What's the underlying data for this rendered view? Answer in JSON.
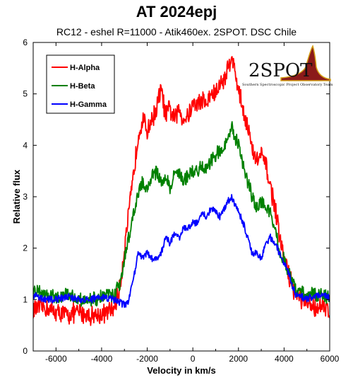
{
  "title": "AT 2024epj",
  "subtitle": "RC12 - eshel R=11000 - Atik460ex. 2SPOT. DSC Chile",
  "logo": {
    "text": "2SPOT",
    "tagline": "Southern Spectroscopic Project Observatory Team",
    "colors": {
      "text": "#111111",
      "curve": "#d4a017",
      "fill": "#8b1a1a"
    }
  },
  "chart_data": {
    "type": "line",
    "title": "AT 2024epj",
    "subtitle": "RC12 - eshel R=11000 - Atik460ex. 2SPOT. DSC Chile",
    "xlabel": "Velocity in km/s",
    "ylabel": "Relative flux",
    "xlim": [
      -7000,
      6000
    ],
    "ylim": [
      0,
      6
    ],
    "xticks": [
      -6000,
      -4000,
      -2000,
      0,
      2000,
      4000,
      6000
    ],
    "yticks": [
      0,
      1,
      2,
      3,
      4,
      5,
      6
    ],
    "legend_position": "top-left",
    "grid": false,
    "series": [
      {
        "name": "H-Alpha",
        "color": "#ff0000",
        "x": [
          -7000,
          -6500,
          -6000,
          -5500,
          -5000,
          -4500,
          -4000,
          -3500,
          -3200,
          -3000,
          -2800,
          -2600,
          -2400,
          -2200,
          -2000,
          -1800,
          -1600,
          -1400,
          -1200,
          -1000,
          -800,
          -600,
          -400,
          -200,
          0,
          200,
          400,
          600,
          800,
          1000,
          1200,
          1400,
          1600,
          1700,
          1800,
          2000,
          2200,
          2400,
          2600,
          2800,
          3000,
          3200,
          3400,
          3600,
          3800,
          4000,
          4200,
          4500,
          5000,
          5500,
          6000
        ],
        "y": [
          0.8,
          0.85,
          0.75,
          0.7,
          0.75,
          0.7,
          0.7,
          0.8,
          1.2,
          2.0,
          2.7,
          3.4,
          4.2,
          4.5,
          4.3,
          4.5,
          4.7,
          5.1,
          4.6,
          4.7,
          4.5,
          4.7,
          4.5,
          4.6,
          4.8,
          4.8,
          4.9,
          4.8,
          5.0,
          5.0,
          5.2,
          5.3,
          5.6,
          5.8,
          5.5,
          5.1,
          4.7,
          4.4,
          3.9,
          3.7,
          3.8,
          3.6,
          3.2,
          2.8,
          2.2,
          1.8,
          1.5,
          1.1,
          0.9,
          0.85,
          0.8
        ]
      },
      {
        "name": "H-Beta",
        "color": "#008000",
        "x": [
          -7000,
          -6500,
          -6000,
          -5500,
          -5000,
          -4500,
          -4000,
          -3500,
          -3200,
          -3000,
          -2800,
          -2600,
          -2400,
          -2200,
          -2000,
          -1800,
          -1600,
          -1400,
          -1200,
          -1000,
          -800,
          -600,
          -400,
          -200,
          0,
          200,
          400,
          600,
          800,
          1000,
          1200,
          1400,
          1600,
          1700,
          1800,
          2000,
          2200,
          2400,
          2600,
          2800,
          3000,
          3200,
          3400,
          3600,
          3800,
          4000,
          4200,
          4500,
          5000,
          5500,
          6000
        ],
        "y": [
          1.2,
          1.15,
          1.0,
          1.1,
          1.0,
          1.0,
          1.05,
          1.1,
          1.3,
          1.8,
          2.2,
          2.7,
          3.0,
          3.3,
          3.1,
          3.4,
          3.5,
          3.3,
          3.4,
          3.2,
          3.4,
          3.5,
          3.3,
          3.4,
          3.5,
          3.5,
          3.6,
          3.5,
          3.7,
          3.8,
          3.9,
          4.0,
          4.2,
          4.4,
          4.2,
          4.0,
          3.6,
          3.3,
          3.0,
          2.8,
          2.9,
          2.8,
          2.7,
          2.4,
          1.9,
          1.8,
          1.5,
          1.2,
          1.1,
          1.1,
          1.05
        ]
      },
      {
        "name": "H-Gamma",
        "color": "#0000ff",
        "x": [
          -7000,
          -6500,
          -6000,
          -5500,
          -5000,
          -4500,
          -4000,
          -3500,
          -3200,
          -3000,
          -2800,
          -2600,
          -2400,
          -2200,
          -2000,
          -1800,
          -1600,
          -1400,
          -1200,
          -1000,
          -800,
          -600,
          -400,
          -200,
          0,
          200,
          400,
          600,
          800,
          1000,
          1200,
          1400,
          1600,
          1700,
          1800,
          2000,
          2200,
          2400,
          2600,
          2800,
          3000,
          3200,
          3400,
          3600,
          3800,
          4000,
          4200,
          4500,
          5000,
          5500,
          6000
        ],
        "y": [
          1.1,
          1.0,
          1.0,
          1.05,
          1.0,
          1.0,
          1.05,
          1.0,
          0.95,
          0.9,
          1.0,
          1.4,
          1.9,
          1.8,
          1.9,
          1.8,
          1.8,
          1.9,
          2.2,
          2.1,
          2.3,
          2.2,
          2.4,
          2.4,
          2.5,
          2.5,
          2.7,
          2.6,
          2.8,
          2.7,
          2.6,
          2.8,
          2.95,
          3.0,
          2.9,
          2.7,
          2.5,
          2.2,
          1.9,
          1.9,
          1.8,
          2.1,
          2.2,
          2.1,
          1.9,
          1.7,
          1.5,
          1.1,
          1.0,
          1.1,
          1.05
        ]
      }
    ]
  }
}
